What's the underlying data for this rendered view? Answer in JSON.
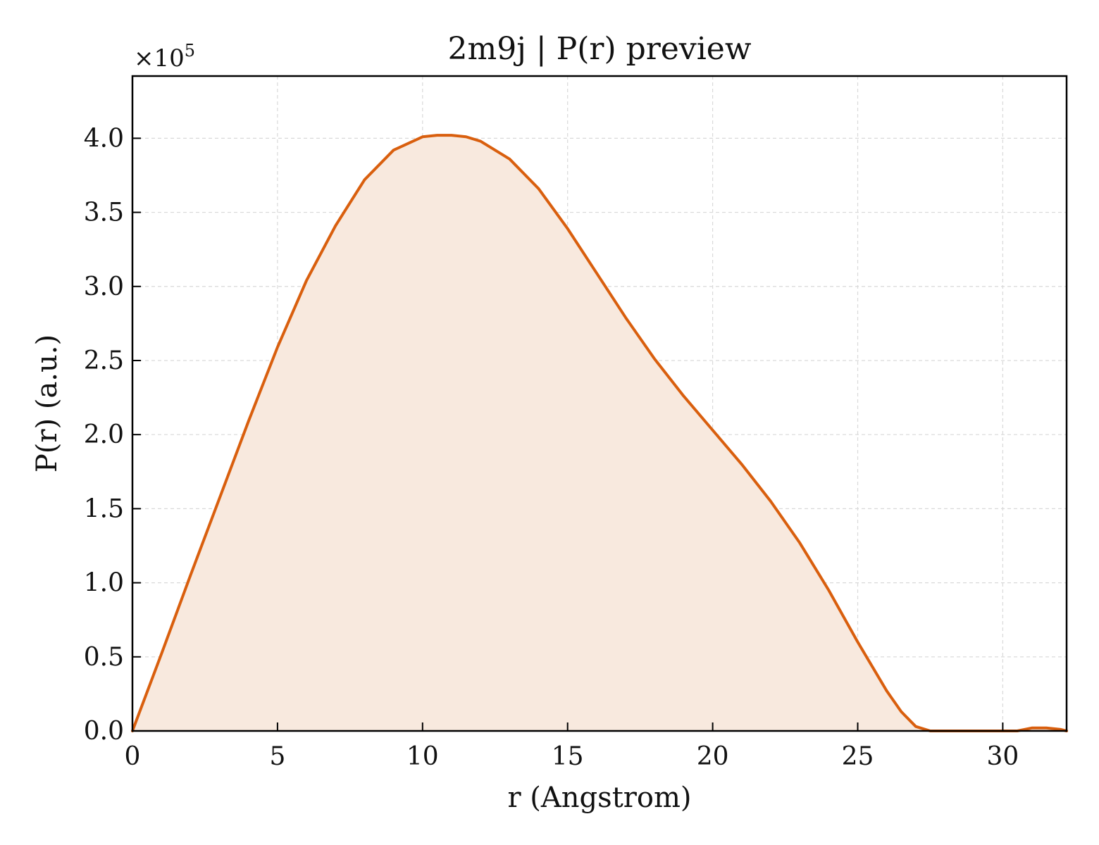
{
  "chart_data": {
    "type": "area",
    "title": "2m9j | P(r) preview",
    "xlabel": "r (Angstrom)",
    "ylabel": "P(r) (a.u.)",
    "y_multiplier_label": "×10",
    "y_multiplier_exponent": "5",
    "y_scale": 100000,
    "xlim": [
      0,
      32.2
    ],
    "ylim": [
      0,
      4.42
    ],
    "x_ticks": [
      0,
      5,
      10,
      15,
      20,
      25,
      30
    ],
    "y_ticks": [
      0.0,
      0.5,
      1.0,
      1.5,
      2.0,
      2.5,
      3.0,
      3.5,
      4.0
    ],
    "x_tick_labels": [
      "0",
      "5",
      "10",
      "15",
      "20",
      "25",
      "30"
    ],
    "y_tick_labels": [
      "0.0",
      "0.5",
      "1.0",
      "1.5",
      "2.0",
      "2.5",
      "3.0",
      "3.5",
      "4.0"
    ],
    "grid": true,
    "colors": {
      "line": "#d95f0e",
      "fill": "#f8e9de",
      "grid": "#d9d9d9",
      "axes": "#000000"
    },
    "x": [
      0,
      1,
      2,
      3,
      4,
      5,
      6,
      7,
      8,
      9,
      10,
      10.5,
      11,
      11.5,
      12,
      13,
      14,
      15,
      16,
      17,
      18,
      19,
      20,
      21,
      22,
      23,
      24,
      25,
      26,
      26.5,
      27,
      27.5,
      28,
      29,
      30,
      30.5,
      31,
      31.5,
      32,
      32.2
    ],
    "values": [
      0,
      0.52,
      1.05,
      1.57,
      2.09,
      2.59,
      3.04,
      3.41,
      3.72,
      3.92,
      4.01,
      4.02,
      4.02,
      4.01,
      3.98,
      3.86,
      3.66,
      3.39,
      3.09,
      2.79,
      2.51,
      2.26,
      2.03,
      1.8,
      1.55,
      1.27,
      0.95,
      0.6,
      0.27,
      0.13,
      0.03,
      0.0,
      0.0,
      0.0,
      0.0,
      0.0,
      0.02,
      0.02,
      0.01,
      0.0
    ]
  }
}
